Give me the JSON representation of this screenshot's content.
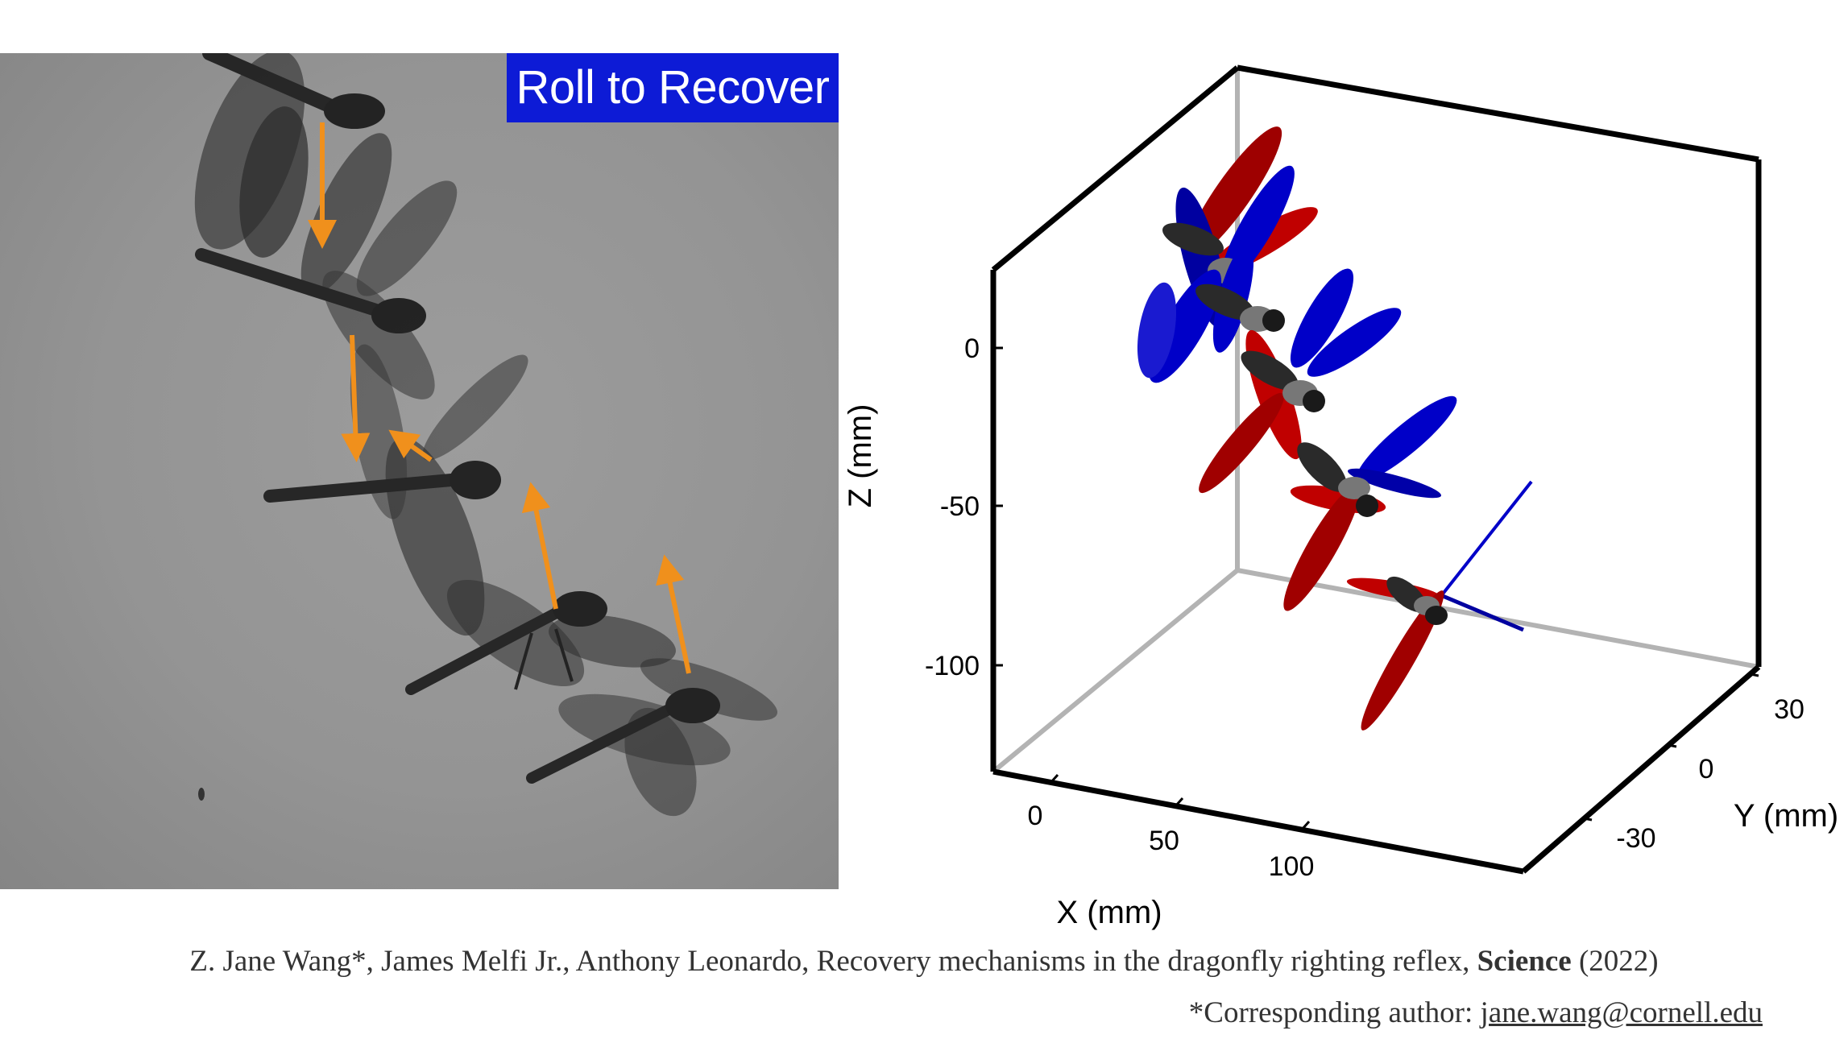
{
  "photo_panel": {
    "title": "Roll to Recover",
    "arrow_color": "#f0901c",
    "title_background": "#0d1bd6"
  },
  "plot": {
    "xlabel": "X (mm)",
    "ylabel": "Y (mm)",
    "zlabel": "Z (mm)",
    "x_ticks": [
      "0",
      "50",
      "100"
    ],
    "y_ticks": [
      "-30",
      "0",
      "30"
    ],
    "z_ticks": [
      "0",
      "-50",
      "-100"
    ],
    "colors": {
      "red": "#c00000",
      "blue": "#0000c8",
      "body": "#2a2a2a"
    }
  },
  "citation": {
    "authors_title": "Z. Jane Wang*, James Melfi Jr., Anthony Leonardo,  Recovery mechanisms in the dragonfly righting reflex, ",
    "journal": "Science",
    "year": " (2022)",
    "corresponding_prefix": "*Corresponding author: ",
    "email": "jane.wang@cornell.edu"
  }
}
